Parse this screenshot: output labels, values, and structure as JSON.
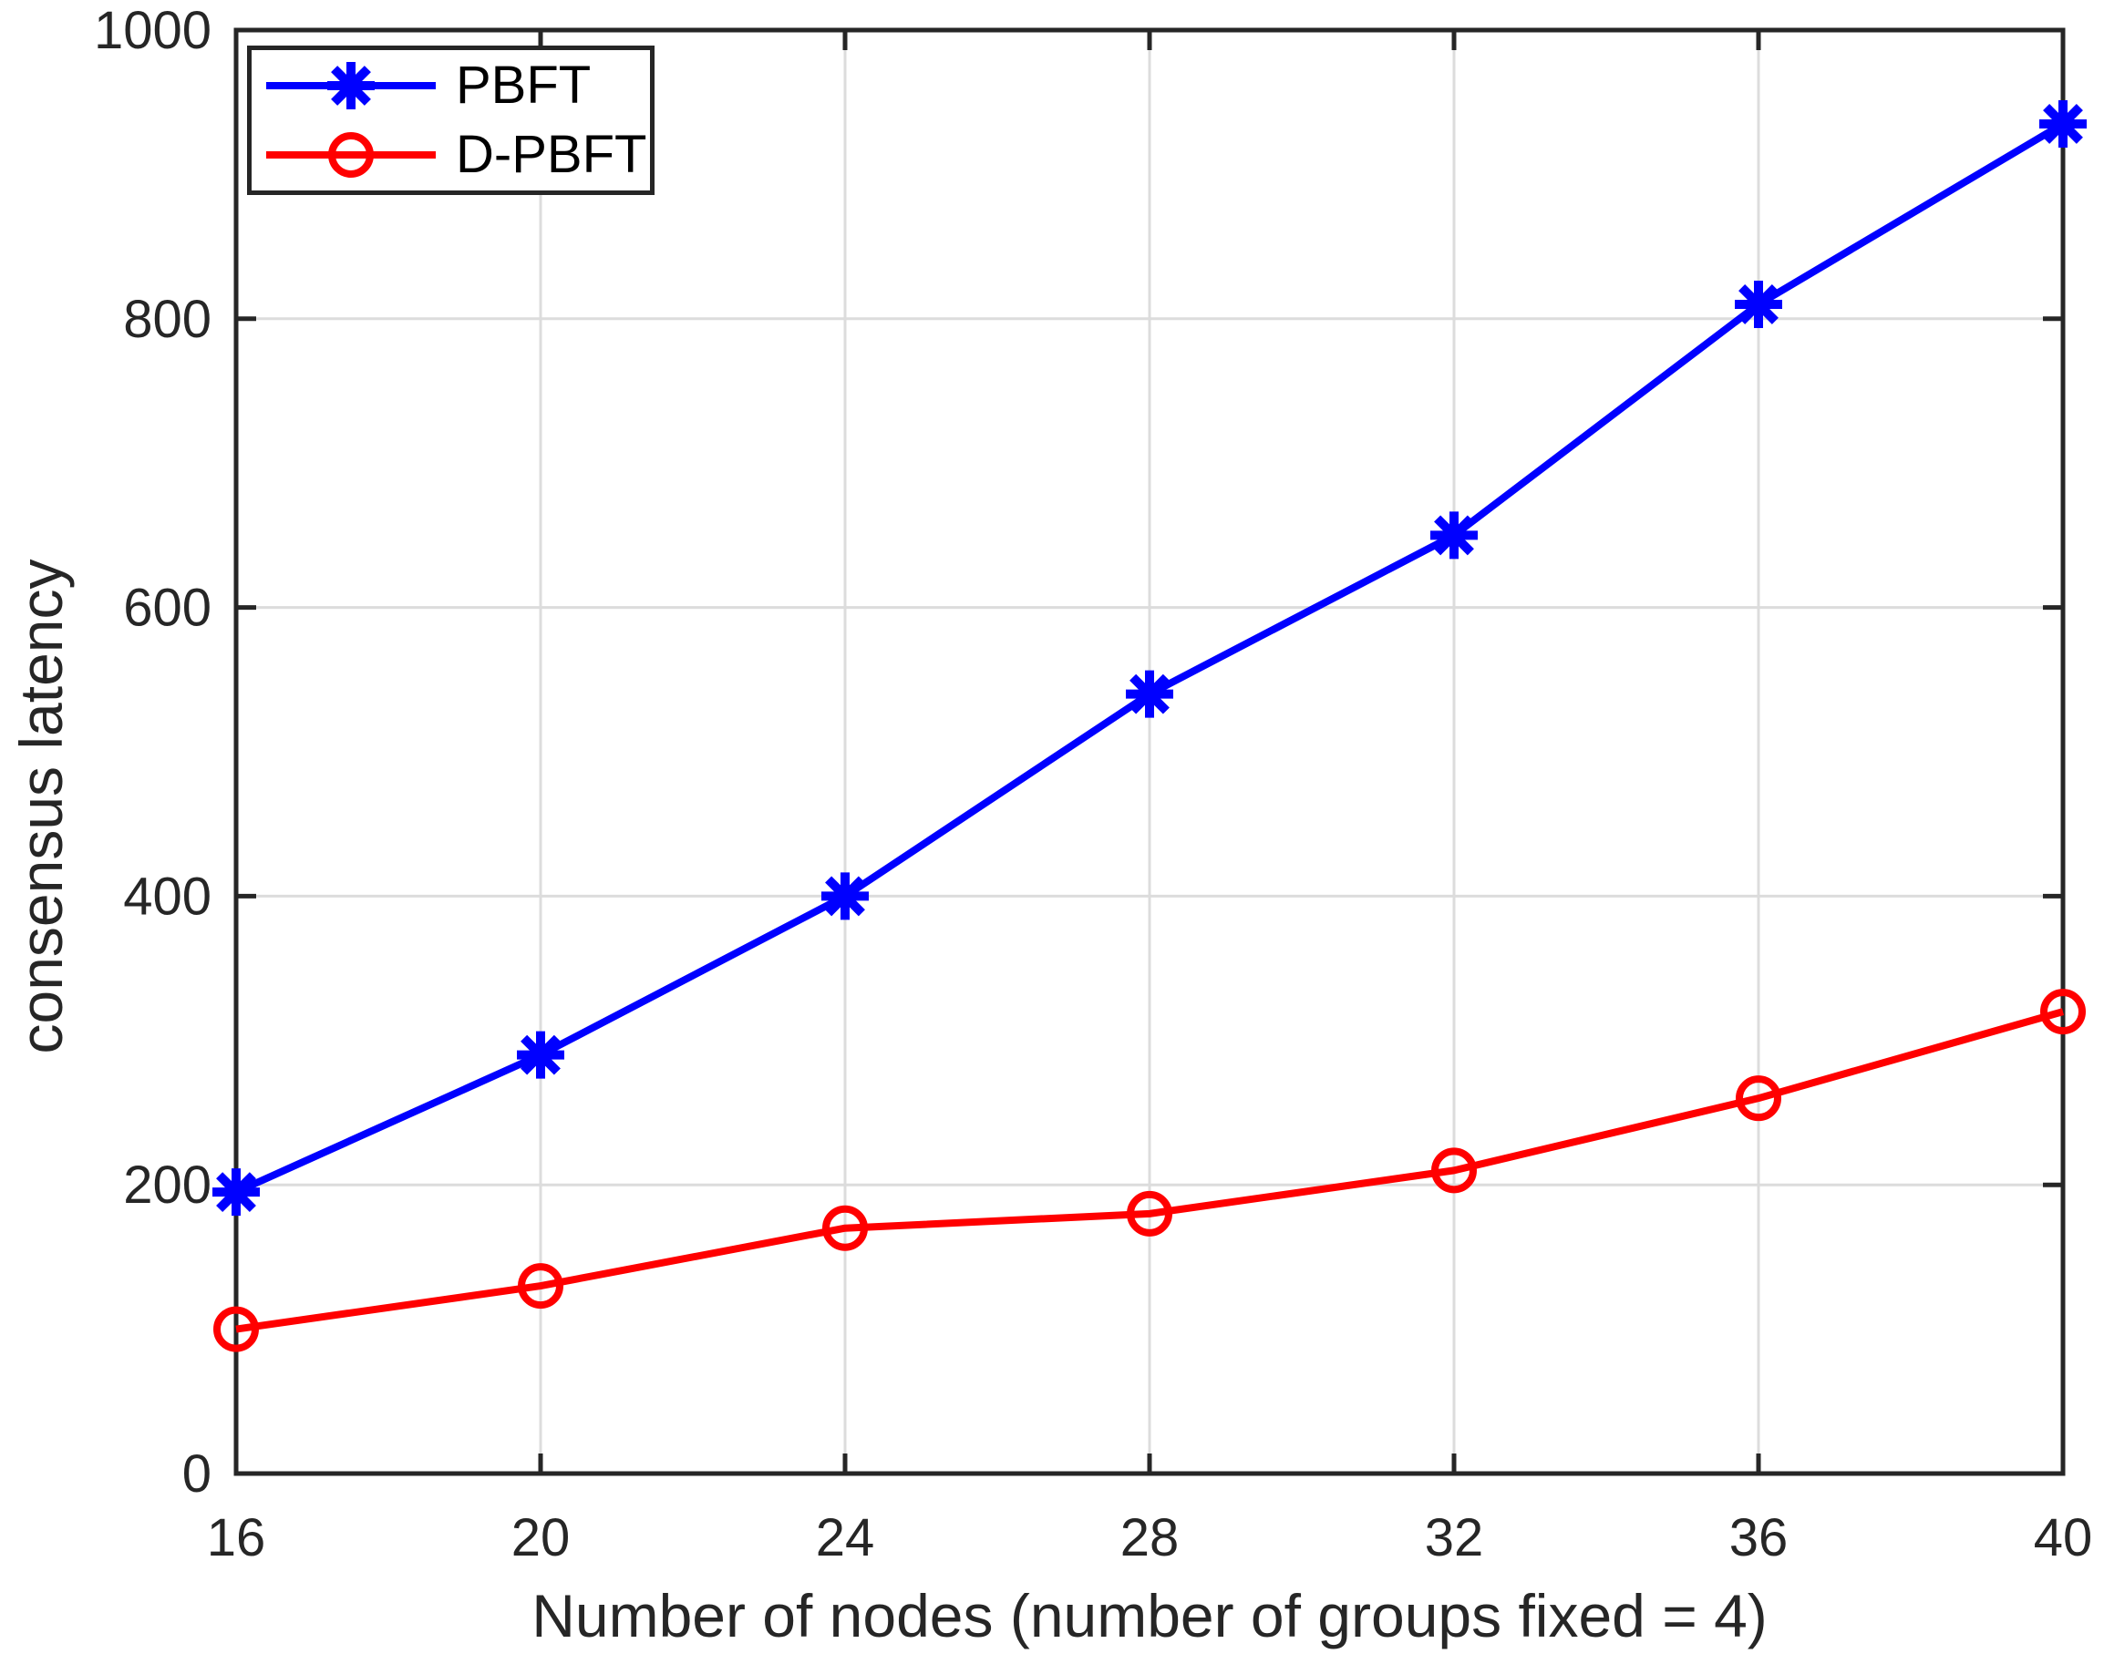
{
  "figure": {
    "background": "#ffffff",
    "axis_color": "#262626",
    "grid_color": "#dcdcdc",
    "tick_label_color": "#262626"
  },
  "legend": {
    "entries": [
      {
        "label": "PBFT"
      },
      {
        "label": "D-PBFT"
      }
    ]
  },
  "chart_data": {
    "type": "line",
    "title": "",
    "xlabel": "Number of nodes (number of groups fixed = 4)",
    "ylabel": "consensus latency",
    "xlim": [
      16,
      40
    ],
    "ylim": [
      0,
      1000
    ],
    "xticks": [
      16,
      20,
      24,
      28,
      32,
      36,
      40
    ],
    "yticks": [
      0,
      200,
      400,
      600,
      800,
      1000
    ],
    "grid": true,
    "legend_position": "top-left",
    "x": [
      16,
      20,
      24,
      28,
      32,
      36,
      40
    ],
    "series": [
      {
        "name": "PBFT",
        "color": "#0000ff",
        "marker": "asterisk",
        "values": [
          195,
          290,
          400,
          540,
          650,
          810,
          935
        ]
      },
      {
        "name": "D-PBFT",
        "color": "#ff0000",
        "marker": "circle",
        "values": [
          100,
          130,
          170,
          180,
          210,
          260,
          320
        ]
      }
    ]
  }
}
